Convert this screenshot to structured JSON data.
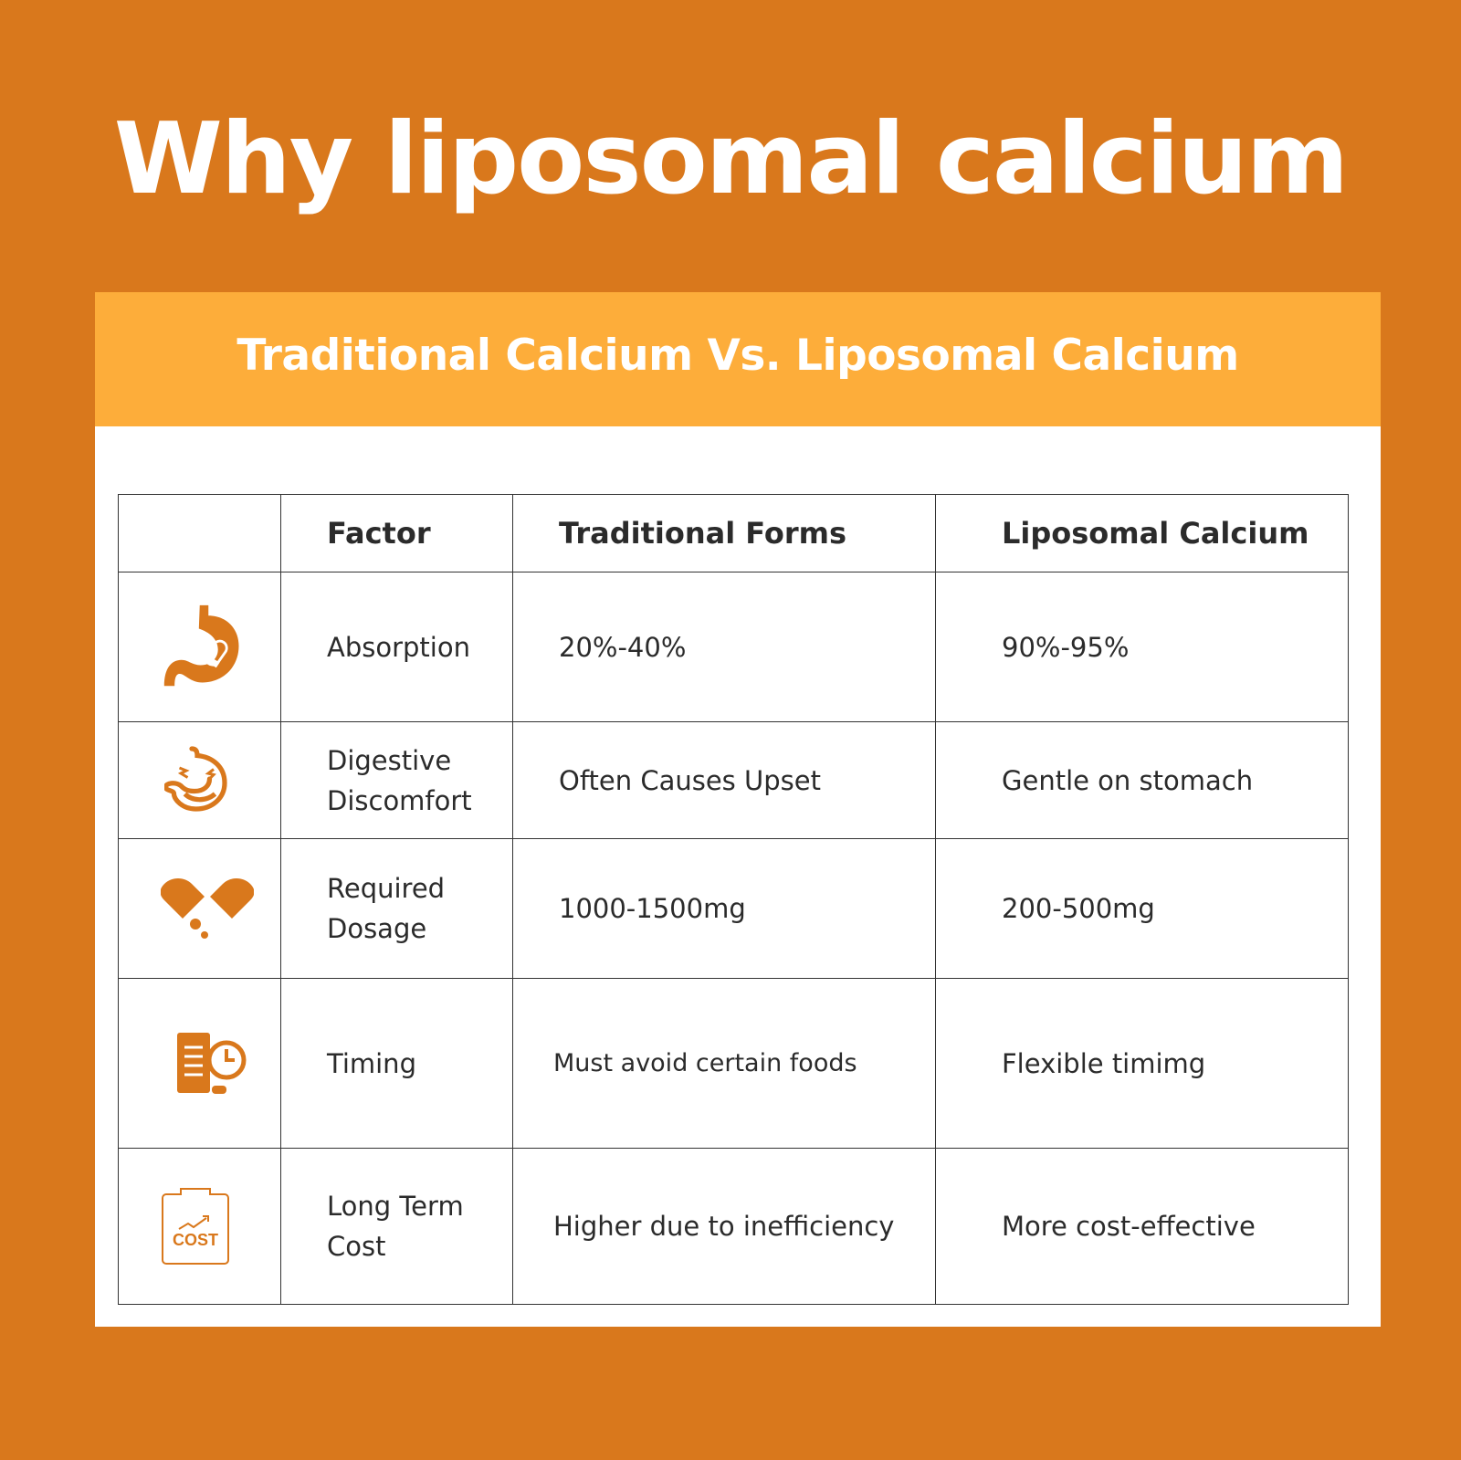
{
  "title": "Why liposomal calcium",
  "banner": "Traditional Calcium Vs. Liposomal Calcium",
  "colors": {
    "background": "#D9781C",
    "banner": "#FDAD3A",
    "icon": "#D9781C",
    "text": "#2B2B2B"
  },
  "table": {
    "headers": [
      "",
      "Factor",
      "Traditional Forms",
      "Liposomal Calcium"
    ],
    "rows": [
      {
        "icon": "stomach-pill-icon",
        "factor": "Absorption",
        "traditional": "20%-40%",
        "liposomal": "90%-95%"
      },
      {
        "icon": "upset-stomach-icon",
        "factor": "Digestive Discomfort",
        "traditional": "Often Causes Upset",
        "liposomal": "Gentle on stomach"
      },
      {
        "icon": "open-capsule-icon",
        "factor": "Required Dosage",
        "traditional": "1000-1500mg",
        "liposomal": "200-500mg"
      },
      {
        "icon": "schedule-clock-icon",
        "factor": "Timing",
        "traditional": "Must avoid certain foods",
        "liposomal": "Flexible timimg"
      },
      {
        "icon": "cost-icon",
        "icon_text": "COST",
        "factor": "Long Term Cost",
        "traditional": "Higher due to inefficiency",
        "liposomal": "More cost-effective"
      }
    ]
  }
}
